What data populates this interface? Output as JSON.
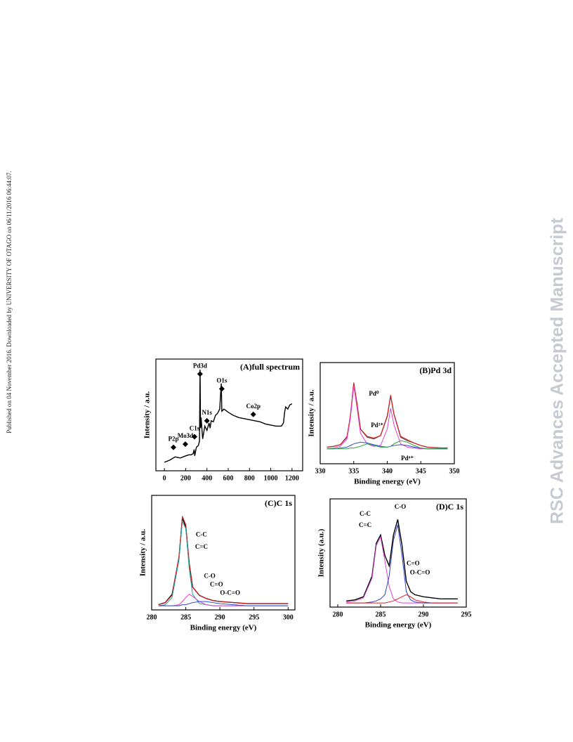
{
  "sidebar": "Published on 04 November 2016. Downloaded by UNIVERSITY OF OTAGO on 06/11/2016 06:44:07.",
  "watermark": "RSC Advances Accepted Manuscript",
  "chart_data": [
    {
      "type": "line",
      "title": "(A)full spectrum",
      "ylabel": "Intensity / a.u.",
      "x": [
        0,
        50,
        100,
        150,
        200,
        230,
        250,
        270,
        280,
        285,
        300,
        320,
        330,
        335,
        340,
        345,
        360,
        380,
        400,
        420,
        430,
        440,
        460,
        480,
        500,
        520,
        530,
        535,
        540,
        560,
        600,
        650,
        700,
        750,
        800,
        850,
        900,
        950,
        1000,
        1050,
        1100,
        1120,
        1130,
        1140,
        1160,
        1180,
        1200
      ],
      "xlim": [
        -80,
        1300
      ],
      "ylim": [
        0,
        105
      ],
      "xticks": [
        0,
        200,
        400,
        600,
        800,
        1000,
        1200
      ],
      "series": [
        {
          "color": "#000000",
          "values": [
            8,
            10,
            13,
            12,
            14,
            15,
            15,
            16,
            20,
            14,
            22,
            24,
            28,
            95,
            40,
            50,
            30,
            42,
            38,
            45,
            40,
            47,
            46,
            52,
            54,
            58,
            75,
            82,
            56,
            58,
            55,
            52,
            50,
            49,
            48,
            47,
            46,
            44,
            43,
            42,
            42,
            45,
            55,
            60,
            58,
            62,
            63
          ]
        }
      ],
      "annotation_marker": "diamond",
      "annotations": [
        {
          "text": "P2p",
          "x": 85,
          "y": 22
        },
        {
          "text": "Mo3d",
          "x": 197,
          "y": 25
        },
        {
          "text": "C1s",
          "x": 283,
          "y": 32
        },
        {
          "text": "Pd3d",
          "x": 335,
          "y": 91
        },
        {
          "text": "N1s",
          "x": 400,
          "y": 47
        },
        {
          "text": "O1s",
          "x": 540,
          "y": 77
        },
        {
          "text": "Co2p",
          "x": 836,
          "y": 53
        }
      ]
    },
    {
      "type": "line",
      "title": "(B)Pd 3d",
      "xlabel": "Binding energy (eV)",
      "ylabel": "Intensity / a.u.",
      "x": [
        331,
        332,
        333,
        334,
        334.5,
        335,
        335.5,
        336,
        337,
        338,
        339,
        340,
        340.5,
        341,
        342,
        343,
        344,
        345,
        346,
        348,
        349
      ],
      "xlim": [
        330,
        350
      ],
      "ylim": [
        -12,
        110
      ],
      "xticks": [
        330,
        335,
        340,
        345,
        350
      ],
      "series": [
        {
          "color": "#555555",
          "values": [
            8,
            9,
            11,
            20,
            45,
            85,
            60,
            30,
            20,
            18,
            22,
            45,
            70,
            48,
            20,
            16,
            13,
            10,
            8,
            7,
            7
          ]
        },
        {
          "color": "#e02020",
          "values": [
            8,
            9,
            11,
            21,
            46,
            86,
            60,
            30,
            21,
            19,
            22,
            46,
            71,
            48,
            21,
            17,
            13,
            10,
            8,
            7,
            7
          ]
        },
        {
          "color": "#e040d0",
          "values": [
            6,
            7,
            9,
            18,
            43,
            82,
            55,
            25,
            12,
            9,
            10,
            30,
            55,
            35,
            12,
            8,
            7,
            6,
            6,
            6,
            6
          ]
        },
        {
          "color": "#3050d0",
          "values": [
            6,
            6,
            7,
            8,
            10,
            12,
            13,
            14,
            13,
            11,
            9,
            8,
            9,
            10,
            11,
            10,
            8,
            7,
            6,
            6,
            6
          ]
        },
        {
          "color": "#30a040",
          "values": [
            6,
            6,
            6,
            6,
            7,
            7,
            8,
            9,
            12,
            10,
            8,
            8,
            9,
            12,
            16,
            14,
            10,
            7,
            6,
            6,
            6
          ]
        }
      ],
      "annotations": [
        {
          "text": "Pd⁰",
          "x": 338,
          "y": 72
        },
        {
          "text": "Pd²⁺",
          "x": 338.5,
          "y": 34
        },
        {
          "text": "Pd⁴⁺",
          "x": 343,
          "y": -6
        }
      ]
    },
    {
      "type": "line",
      "title": "(C)C 1s",
      "xlabel": "Binding energy (eV)",
      "ylabel": "Intensity / a.u.",
      "x": [
        281,
        282,
        283,
        284,
        284.5,
        285,
        285.5,
        286,
        287,
        288,
        289,
        290,
        292,
        294,
        296,
        298,
        300
      ],
      "xlim": [
        280,
        301
      ],
      "ylim": [
        0,
        110
      ],
      "xticks": [
        280,
        285,
        290,
        295,
        300
      ],
      "series": [
        {
          "color": "#000000",
          "values": [
            5,
            7,
            15,
            50,
            88,
            80,
            45,
            22,
            14,
            11,
            9,
            8,
            7,
            6,
            6,
            6,
            6
          ]
        },
        {
          "color": "#e02020",
          "values": [
            5,
            7,
            14,
            52,
            90,
            82,
            45,
            22,
            14,
            11,
            9,
            8,
            7,
            6,
            6,
            6,
            6
          ]
        },
        {
          "color": "#20a0a0",
          "values": [
            4,
            5,
            12,
            48,
            85,
            78,
            40,
            15,
            6,
            5,
            4,
            4,
            4,
            4,
            4,
            4,
            4
          ]
        },
        {
          "color": "#e040d0",
          "values": [
            4,
            4,
            4,
            5,
            8,
            12,
            15,
            13,
            8,
            5,
            4,
            4,
            4,
            4,
            4,
            4,
            4
          ]
        },
        {
          "color": "#3050d0",
          "values": [
            4,
            4,
            4,
            4,
            5,
            5,
            6,
            7,
            8,
            8,
            7,
            6,
            5,
            4,
            4,
            4,
            4
          ]
        }
      ],
      "annotations": [
        {
          "text": "C-C",
          "x": 287.3,
          "y": 72
        },
        {
          "text": "C=C",
          "x": 287.3,
          "y": 60
        },
        {
          "text": "C-O",
          "x": 288.5,
          "y": 32
        },
        {
          "text": "C=O",
          "x": 289.5,
          "y": 24
        },
        {
          "text": "O-C=O",
          "x": 291.5,
          "y": 16
        }
      ]
    },
    {
      "type": "line",
      "title": "(D)C 1s",
      "xlabel": "Binding energy (eV)",
      "ylabel": "Intensity (a.u.)",
      "x": [
        281,
        282,
        283,
        284,
        284.5,
        285,
        285.5,
        286,
        286.5,
        287,
        287.5,
        288,
        288.5,
        289,
        290,
        291,
        292,
        293,
        294
      ],
      "xlim": [
        279.1,
        295
      ],
      "ylim": [
        0,
        105
      ],
      "xticks": [
        280,
        285,
        290,
        295
      ],
      "series": [
        {
          "color": "#000000",
          "values": [
            6,
            7,
            10,
            30,
            62,
            70,
            50,
            40,
            70,
            85,
            60,
            25,
            15,
            12,
            10,
            9,
            8,
            8,
            8
          ]
        },
        {
          "color": "#e040d0",
          "values": [
            5,
            6,
            9,
            28,
            60,
            68,
            45,
            20,
            8,
            5,
            4,
            4,
            4,
            4,
            4,
            4,
            4,
            4,
            4
          ]
        },
        {
          "color": "#3040c0",
          "values": [
            4,
            4,
            4,
            5,
            6,
            8,
            12,
            30,
            65,
            80,
            50,
            15,
            7,
            5,
            4,
            4,
            4,
            4,
            4
          ]
        },
        {
          "color": "#e02020",
          "values": [
            4,
            4,
            4,
            4,
            4,
            4,
            4,
            5,
            6,
            8,
            10,
            12,
            10,
            7,
            5,
            4,
            4,
            4,
            4
          ]
        }
      ],
      "annotations": [
        {
          "text": "C-C",
          "x": 283.2,
          "y": 90
        },
        {
          "text": "C=C",
          "x": 283.2,
          "y": 79
        },
        {
          "text": "C-O",
          "x": 287.3,
          "y": 97
        },
        {
          "text": "C=O",
          "x": 288.8,
          "y": 42
        },
        {
          "text": "O-C=O",
          "x": 289.6,
          "y": 33
        }
      ]
    }
  ]
}
